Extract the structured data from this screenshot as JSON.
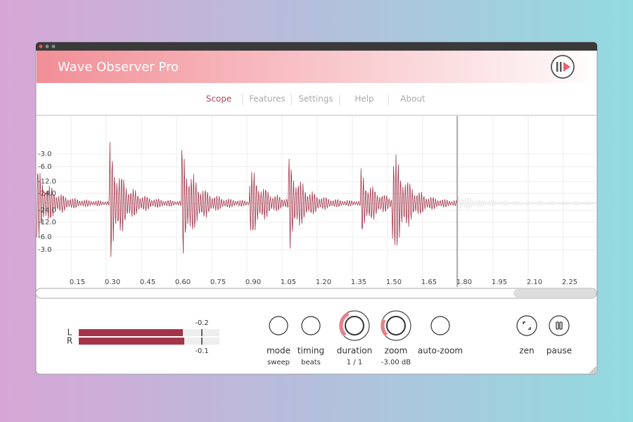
{
  "window": {
    "title": "Wave Observer Pro"
  },
  "nav": [
    "Scope",
    "Features",
    "Settings",
    "Help",
    "About"
  ],
  "scope": {
    "amplitude_labels": [
      "-3.0",
      "-6.0",
      "-12.0",
      "-24.0",
      "-24.0",
      "-12.0",
      "-6.0",
      "-3.0"
    ],
    "time_labels": [
      "0.15",
      "0.30",
      "0.45",
      "0.60",
      "0.75",
      "0.90",
      "1.05",
      "1.20",
      "1.35",
      "1.50",
      "1.65",
      "1.80",
      "1.95",
      "2.10",
      "2.25"
    ]
  },
  "meters": {
    "channels": [
      "L",
      "R"
    ],
    "peaks": [
      "-0.2",
      "-0.1"
    ]
  },
  "controls": [
    {
      "label": "mode",
      "value": "sweep"
    },
    {
      "label": "timing",
      "value": "beats"
    },
    {
      "label": "duration",
      "value": "1 / 1"
    },
    {
      "label": "zoom",
      "value": "-3.00 dB"
    },
    {
      "label": "auto-zoom"
    }
  ],
  "buttons": [
    {
      "label": "zen"
    },
    {
      "label": "pause"
    }
  ]
}
